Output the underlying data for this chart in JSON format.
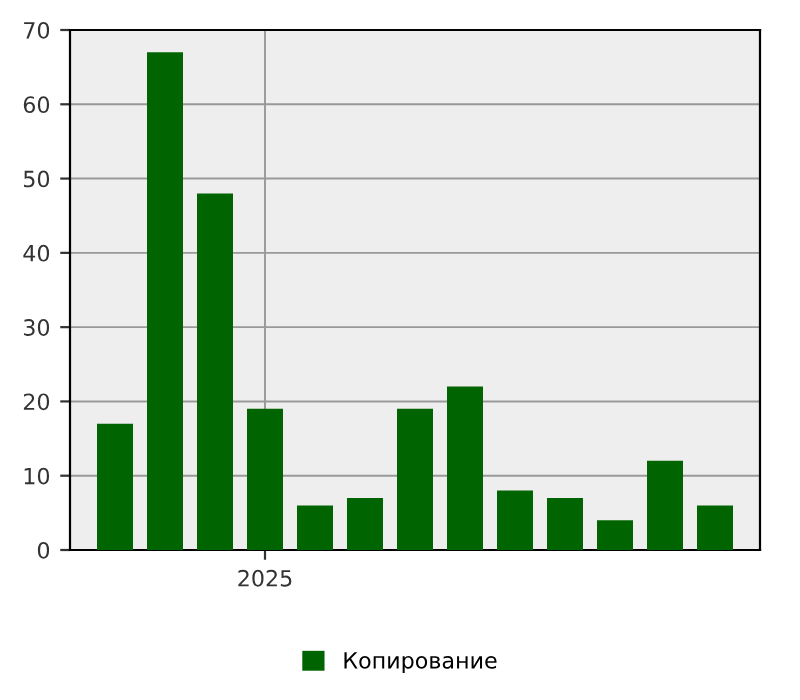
{
  "chart_data": {
    "type": "bar",
    "categories": [
      null,
      null,
      null,
      "2025",
      null,
      null,
      null,
      null,
      null,
      null,
      null,
      null,
      null
    ],
    "series": [
      {
        "name": "Копирование",
        "color": "#006400",
        "values": [
          17,
          67,
          48,
          19,
          6,
          7,
          19,
          22,
          8,
          7,
          4,
          12,
          6
        ]
      }
    ],
    "ylim": [
      0,
      70
    ],
    "yticks": [
      0,
      10,
      20,
      30,
      40,
      50,
      60,
      70
    ],
    "grid": true,
    "legend": "bottom"
  }
}
